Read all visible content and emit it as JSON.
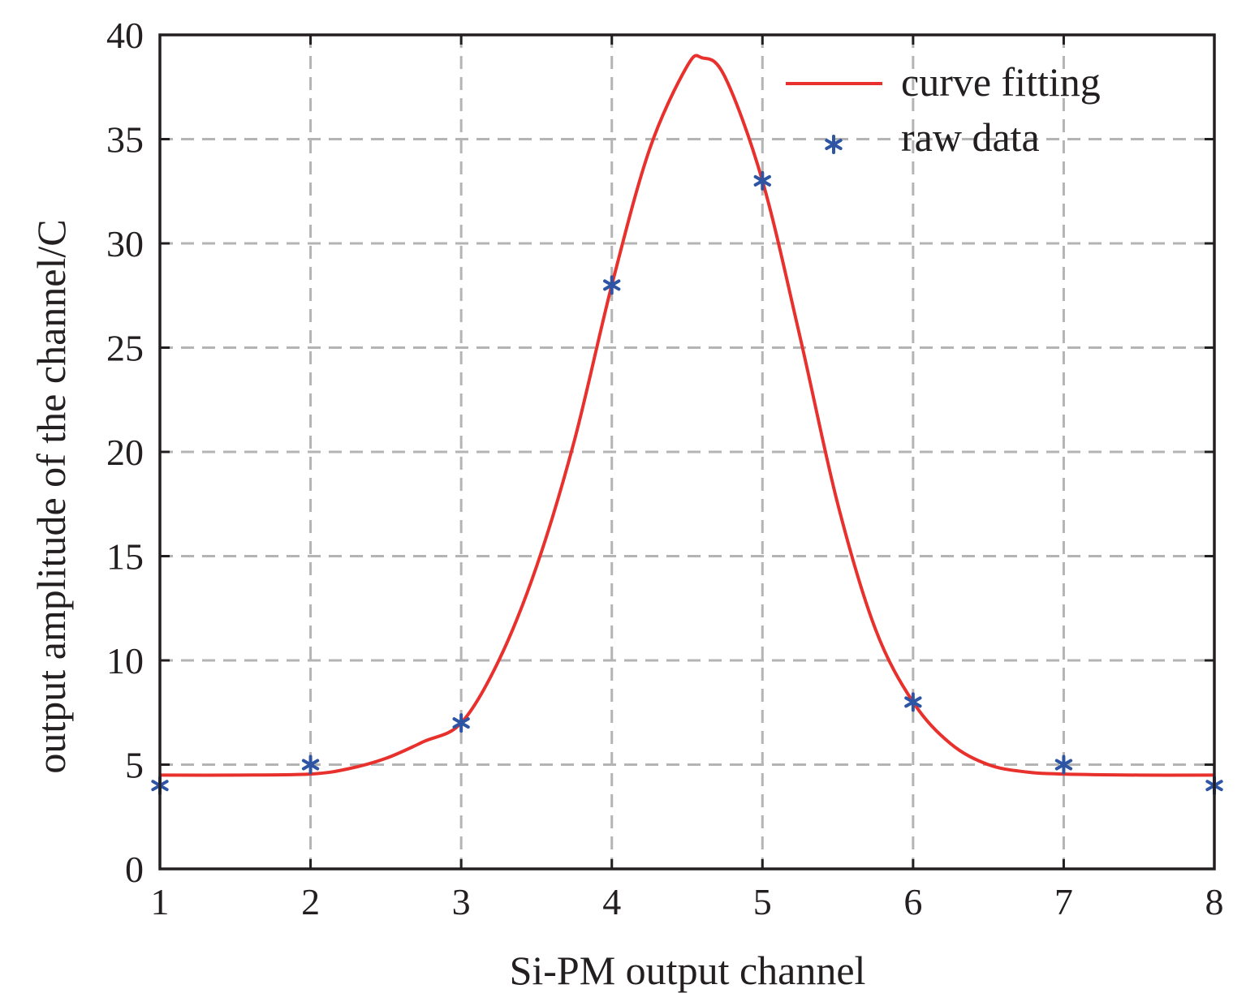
{
  "chart_data": {
    "type": "line",
    "title": "",
    "xlabel": "Si-PM output channel",
    "ylabel": "output amplitude of the channel/C",
    "xlim": [
      1,
      8
    ],
    "ylim": [
      0,
      40
    ],
    "xticks": [
      "1",
      "2",
      "3",
      "4",
      "5",
      "6",
      "7",
      "8"
    ],
    "yticks": [
      "0",
      "5",
      "10",
      "15",
      "20",
      "25",
      "30",
      "35",
      "40"
    ],
    "grid": true,
    "legend_position": "top-right",
    "series": [
      {
        "name": "curve fitting",
        "kind": "line",
        "color": "#e8302d",
        "x": [
          1,
          1.5,
          2,
          2.25,
          2.5,
          2.75,
          3,
          3.25,
          3.5,
          3.75,
          4,
          4.25,
          4.5,
          4.6,
          4.75,
          5,
          5.25,
          5.5,
          5.75,
          6,
          6.25,
          6.5,
          6.75,
          7,
          7.5,
          8
        ],
        "y": [
          4.5,
          4.5,
          4.55,
          4.8,
          5.3,
          6.1,
          7.0,
          10.0,
          14.5,
          20.5,
          28.0,
          34.5,
          38.5,
          38.9,
          38.0,
          33.0,
          25.5,
          17.5,
          11.5,
          8.0,
          6.0,
          5.0,
          4.65,
          4.55,
          4.5,
          4.5
        ]
      },
      {
        "name": "raw data",
        "kind": "scatter",
        "marker": "asterisk",
        "color": "#2e55a4",
        "x": [
          1,
          2,
          3,
          4,
          5,
          6,
          7,
          8
        ],
        "y": [
          4,
          5,
          7,
          28,
          33,
          8,
          5,
          4
        ]
      }
    ]
  }
}
